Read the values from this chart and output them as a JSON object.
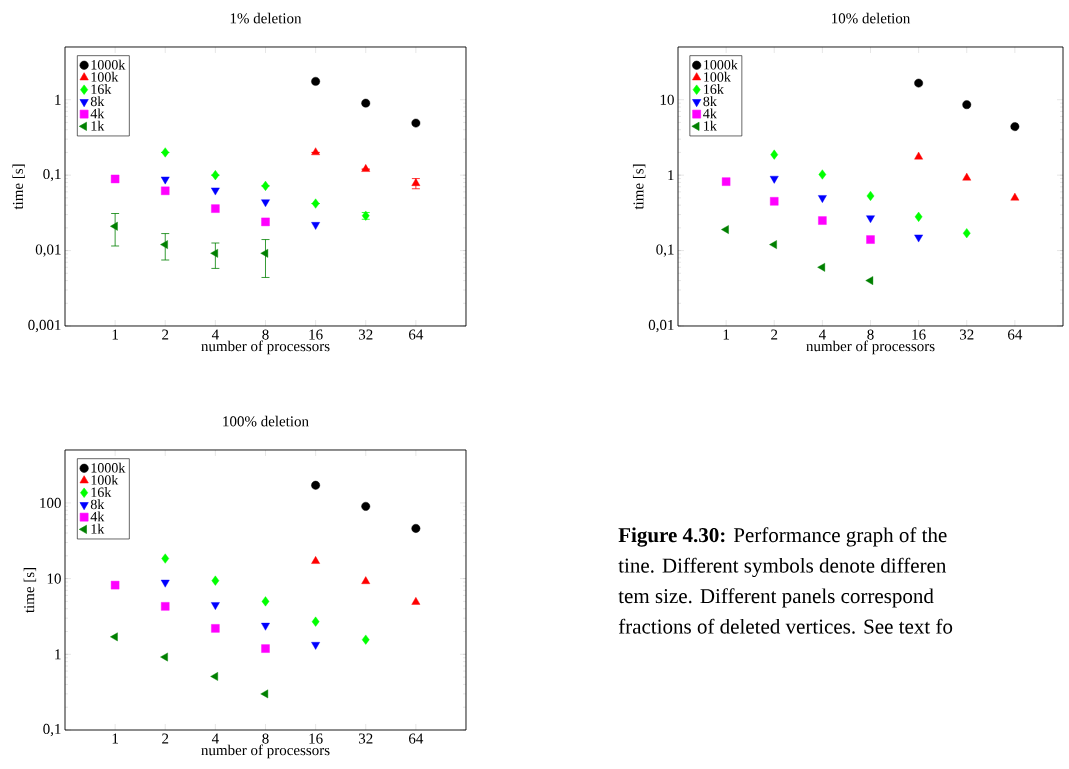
{
  "chart_data": [
    {
      "type": "scatter",
      "title": "1% deletion",
      "xlabel": "number of processors",
      "ylabel": "time [s]",
      "log": "xy",
      "legend": "top left",
      "x": [
        1,
        2,
        4,
        8,
        16,
        32,
        64
      ],
      "xlim": [
        0.5,
        128
      ],
      "xticks": [
        1,
        2,
        4,
        8,
        16,
        32,
        64
      ],
      "ylim": [
        0.001,
        5
      ],
      "yticks": [
        {
          "value": 0.001,
          "label": "0,001"
        },
        {
          "value": 0.01,
          "label": "0,01"
        },
        {
          "value": 0.1,
          "label": "0,1"
        },
        1
      ],
      "series": [
        {
          "name": "1000k",
          "color": "#000000",
          "marker": "circle",
          "values": [
            null,
            null,
            null,
            null,
            1.75,
            0.9,
            0.49
          ]
        },
        {
          "name": "100k",
          "color": "#ff0000",
          "marker": "triangle",
          "values": [
            null,
            null,
            null,
            null,
            0.2,
            0.12,
            0.078
          ],
          "errors": [
            null,
            null,
            null,
            null,
            null,
            null,
            [
              0.066,
              0.09
            ]
          ]
        },
        {
          "name": "16k",
          "color": "#00ff00",
          "marker": "diamond",
          "values": [
            null,
            0.2,
            0.1,
            0.072,
            0.042,
            0.029,
            null
          ],
          "errors": [
            null,
            null,
            null,
            null,
            null,
            [
              0.026,
              0.032
            ],
            null
          ]
        },
        {
          "name": "8k",
          "color": "#0000ff",
          "marker": "triangle-down",
          "values": [
            null,
            0.088,
            0.063,
            0.044,
            0.022,
            null,
            null
          ]
        },
        {
          "name": "4k",
          "color": "#ff00ff",
          "marker": "square",
          "values": [
            0.089,
            0.062,
            0.036,
            0.024,
            null,
            null,
            null
          ]
        },
        {
          "name": "1k",
          "color": "#008000",
          "marker": "triangle-left",
          "values": [
            0.021,
            0.012,
            0.0092,
            0.0092,
            null,
            null,
            null
          ],
          "errors": [
            [
              0.0115,
              0.031
            ],
            [
              0.0075,
              0.0168
            ],
            [
              0.0058,
              0.0126
            ],
            [
              0.0044,
              0.014
            ],
            null,
            null,
            null
          ]
        }
      ]
    },
    {
      "type": "scatter",
      "title": "10% deletion",
      "xlabel": "number of processors",
      "ylabel": "time [s]",
      "log": "xy",
      "legend": "top left",
      "x": [
        1,
        2,
        4,
        8,
        16,
        32,
        64
      ],
      "xlim": [
        0.5,
        128
      ],
      "xticks": [
        1,
        2,
        4,
        8,
        16,
        32,
        64
      ],
      "ylim": [
        0.01,
        50
      ],
      "yticks": [
        {
          "value": 0.01,
          "label": "0,01"
        },
        {
          "value": 0.1,
          "label": "0,1"
        },
        1,
        10
      ],
      "series": [
        {
          "name": "1000k",
          "color": "#000000",
          "marker": "circle",
          "values": [
            null,
            null,
            null,
            null,
            16.6,
            8.6,
            4.4
          ]
        },
        {
          "name": "100k",
          "color": "#ff0000",
          "marker": "triangle",
          "values": [
            null,
            null,
            null,
            null,
            1.75,
            0.92,
            0.5
          ]
        },
        {
          "name": "16k",
          "color": "#00ff00",
          "marker": "diamond",
          "values": [
            null,
            1.87,
            1.02,
            0.53,
            0.28,
            0.17,
            null
          ]
        },
        {
          "name": "8k",
          "color": "#0000ff",
          "marker": "triangle-down",
          "values": [
            null,
            0.9,
            0.5,
            0.27,
            0.15,
            null,
            null
          ]
        },
        {
          "name": "4k",
          "color": "#ff00ff",
          "marker": "square",
          "values": [
            0.82,
            0.45,
            0.25,
            0.14,
            null,
            null,
            null
          ]
        },
        {
          "name": "1k",
          "color": "#008000",
          "marker": "triangle-left",
          "values": [
            0.19,
            0.12,
            0.06,
            0.04,
            null,
            null,
            null
          ]
        }
      ]
    },
    {
      "type": "scatter",
      "title": "100% deletion",
      "xlabel": "number of processors",
      "ylabel": "time [s]",
      "log": "xy",
      "legend": "top left",
      "x": [
        1,
        2,
        4,
        8,
        16,
        32,
        64
      ],
      "xlim": [
        0.5,
        128
      ],
      "xticks": [
        1,
        2,
        4,
        8,
        16,
        32,
        64
      ],
      "ylim": [
        0.1,
        500
      ],
      "yticks": [
        {
          "value": 0.1,
          "label": "0,1"
        },
        1,
        10,
        100
      ],
      "series": [
        {
          "name": "1000k",
          "color": "#000000",
          "marker": "circle",
          "values": [
            null,
            null,
            null,
            null,
            171,
            90,
            46
          ]
        },
        {
          "name": "100k",
          "color": "#ff0000",
          "marker": "triangle",
          "values": [
            null,
            null,
            null,
            null,
            17,
            9.2,
            4.9
          ]
        },
        {
          "name": "16k",
          "color": "#00ff00",
          "marker": "diamond",
          "values": [
            null,
            18.4,
            9.4,
            5.0,
            2.7,
            1.56,
            null
          ]
        },
        {
          "name": "8k",
          "color": "#0000ff",
          "marker": "triangle-down",
          "values": [
            null,
            8.9,
            4.5,
            2.4,
            1.34,
            null,
            null
          ]
        },
        {
          "name": "4k",
          "color": "#ff00ff",
          "marker": "square",
          "values": [
            8.2,
            4.3,
            2.2,
            1.19,
            null,
            null,
            null
          ]
        },
        {
          "name": "1k",
          "color": "#008000",
          "marker": "triangle-left",
          "values": [
            1.7,
            0.92,
            0.51,
            0.3,
            null,
            null,
            null
          ]
        }
      ],
      "annotations": [
        "**Figure 4.30:** Performance graph of the",
        "tine. Different symbols denote differen",
        "tem size. Different panels correspond",
        "fractions of deleted vertices. See text fo"
      ]
    }
  ]
}
